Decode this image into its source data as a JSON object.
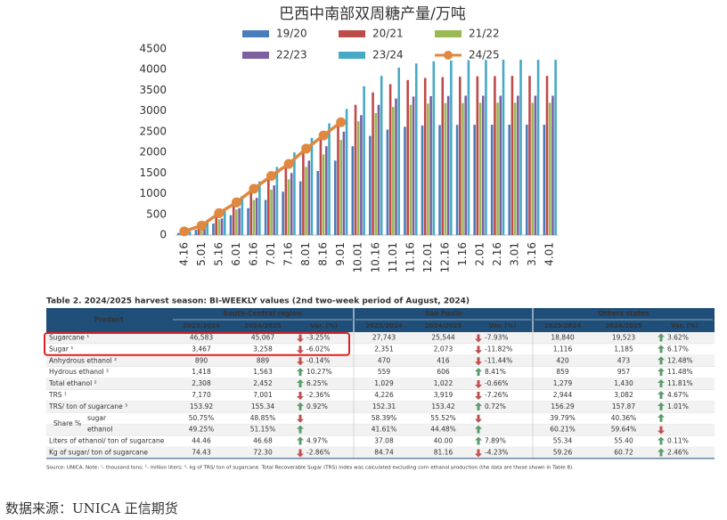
{
  "chart_data": {
    "type": "bar-line",
    "title": "巴西中南部双周糖产量/万吨",
    "categories": [
      "4.16",
      "5.01",
      "5.16",
      "6.01",
      "6.16",
      "7.01",
      "7.16",
      "8.01",
      "8.16",
      "9.01",
      "10.01",
      "10.16",
      "11.01",
      "11.16",
      "12.01",
      "12.16",
      "1.16",
      "2.01",
      "2.16",
      "3.01",
      "3.16",
      "4.01"
    ],
    "series": [
      {
        "name": "19/20",
        "color": "#4a7ebb",
        "kind": "bar",
        "values": [
          50,
          130,
          280,
          480,
          650,
          850,
          1050,
          1300,
          1550,
          1800,
          2150,
          2400,
          2550,
          2620,
          2650,
          2660,
          2665,
          2668,
          2670,
          2670,
          2670,
          2670
        ]
      },
      {
        "name": "20/21",
        "color": "#be4b48",
        "kind": "bar",
        "values": [
          100,
          300,
          550,
          800,
          1100,
          1400,
          1700,
          2000,
          2350,
          2650,
          3150,
          3450,
          3650,
          3750,
          3800,
          3820,
          3830,
          3840,
          3845,
          3850,
          3850,
          3850
        ]
      },
      {
        "name": "21/22",
        "color": "#98b954",
        "kind": "bar",
        "values": [
          70,
          180,
          380,
          620,
          850,
          1100,
          1350,
          1650,
          1950,
          2300,
          2750,
          2950,
          3100,
          3150,
          3180,
          3190,
          3195,
          3200,
          3200,
          3200,
          3200,
          3200
        ]
      },
      {
        "name": "22/23",
        "color": "#7d60a0",
        "kind": "bar",
        "values": [
          60,
          200,
          400,
          650,
          900,
          1200,
          1500,
          1800,
          2150,
          2500,
          2900,
          3150,
          3300,
          3350,
          3360,
          3365,
          3370,
          3370,
          3370,
          3370,
          3370,
          3370
        ]
      },
      {
        "name": "23/24",
        "color": "#46aac5",
        "kind": "bar",
        "values": [
          90,
          300,
          600,
          950,
          1300,
          1650,
          2000,
          2350,
          2700,
          3050,
          3600,
          3850,
          4050,
          4150,
          4200,
          4220,
          4230,
          4235,
          4240,
          4240,
          4240,
          4240
        ]
      },
      {
        "name": "24/25",
        "color": "#e0883f",
        "kind": "line",
        "values": [
          90,
          230,
          530,
          790,
          1120,
          1430,
          1720,
          2090,
          2410,
          2730,
          null,
          null,
          null,
          null,
          null,
          null,
          null,
          null,
          null,
          null,
          null,
          null
        ]
      }
    ],
    "ylim": [
      0,
      4500
    ],
    "yticks": [
      0,
      500,
      1000,
      1500,
      2000,
      2500,
      3000,
      3500,
      4000,
      4500
    ],
    "grid": false
  },
  "table": {
    "title": "Table 2. 2024/2025 harvest season: BI-WEEKLY values (2nd two-week period of August, 2024)",
    "header": {
      "product": "Product",
      "groups": [
        "South-Central region",
        "São Paulo",
        "Others states"
      ],
      "sub": [
        "2023/2024",
        "2024/2025",
        "Var. (%)",
        "2023/2024",
        "2024/2025",
        "Var. (%)",
        "2023/2024",
        "2024/2025",
        "Var. (%)"
      ]
    },
    "share_label": "Share %",
    "rows": [
      {
        "label": "Sugarcane ¹",
        "cells": [
          "46,583",
          "45,067",
          "-3.25%",
          "27,743",
          "25,544",
          "-7.93%",
          "18,840",
          "19,523",
          "3.62%"
        ],
        "arrows": [
          "down",
          "down",
          "up"
        ]
      },
      {
        "label": "Sugar ¹",
        "cells": [
          "3,467",
          "3,258",
          "-6.02%",
          "2,351",
          "2,073",
          "-11.82%",
          "1,116",
          "1,185",
          "6.17%"
        ],
        "arrows": [
          "down",
          "down",
          "up"
        ]
      },
      {
        "label": "Anhydrous ethanol ²",
        "cells": [
          "890",
          "889",
          "-0.14%",
          "470",
          "416",
          "-11.44%",
          "420",
          "473",
          "12.48%"
        ],
        "arrows": [
          "down",
          "down",
          "up"
        ]
      },
      {
        "label": "Hydrous ethanol ²",
        "cells": [
          "1,418",
          "1,563",
          "10.27%",
          "559",
          "606",
          "8.41%",
          "859",
          "957",
          "11.48%"
        ],
        "arrows": [
          "up",
          "up",
          "up"
        ]
      },
      {
        "label": "Total ethanol ²",
        "cells": [
          "2,308",
          "2,452",
          "6.25%",
          "1,029",
          "1,022",
          "-0.66%",
          "1,279",
          "1,430",
          "11.81%"
        ],
        "arrows": [
          "up",
          "down",
          "up"
        ]
      },
      {
        "label": "TRS ¹",
        "cells": [
          "7,170",
          "7,001",
          "-2.36%",
          "4,226",
          "3,919",
          "-7.26%",
          "2,944",
          "3,082",
          "4.67%"
        ],
        "arrows": [
          "down",
          "down",
          "up"
        ]
      },
      {
        "label": "TRS/ ton of sugarcane ³",
        "cells": [
          "153.92",
          "155.34",
          "0.92%",
          "152.31",
          "153.42",
          "0.72%",
          "156.29",
          "157.87",
          "1.01%"
        ],
        "arrows": [
          "up",
          "up",
          "up"
        ]
      },
      {
        "label": "sugar",
        "share": true,
        "cells": [
          "50.75%",
          "48.85%",
          null,
          "58.39%",
          "55.52%",
          null,
          "39.79%",
          "40.36%",
          null
        ],
        "arrows": [
          "down",
          "down",
          "up"
        ]
      },
      {
        "label": "ethanol",
        "share": true,
        "cells": [
          "49.25%",
          "51.15%",
          null,
          "41.61%",
          "44.48%",
          null,
          "60.21%",
          "59.64%",
          null
        ],
        "arrows": [
          "up",
          "up",
          "down"
        ]
      },
      {
        "label": "Liters of ethanol/ ton of sugarcane",
        "cells": [
          "44.46",
          "46.68",
          "4.97%",
          "37.08",
          "40.00",
          "7.89%",
          "55.34",
          "55.40",
          "0.11%"
        ],
        "arrows": [
          "up",
          "up",
          "up"
        ]
      },
      {
        "label": "Kg of sugar/ ton of sugarcane",
        "cells": [
          "74.43",
          "72.30",
          "-2.86%",
          "84.74",
          "81.16",
          "-4.23%",
          "59.26",
          "60.72",
          "2.46%"
        ],
        "arrows": [
          "down",
          "down",
          "up"
        ]
      }
    ],
    "note": "Source: UNICA. Note: ¹- thousand tons; ²- million liters; ³- kg of TRS/ ton of sugarcane. Total Recoverable Sugar (TRS) index was calculated excluding corn ethanol production (the data are those shown in Table 8)."
  },
  "footer": "数据来源：UNICA  正信期货"
}
